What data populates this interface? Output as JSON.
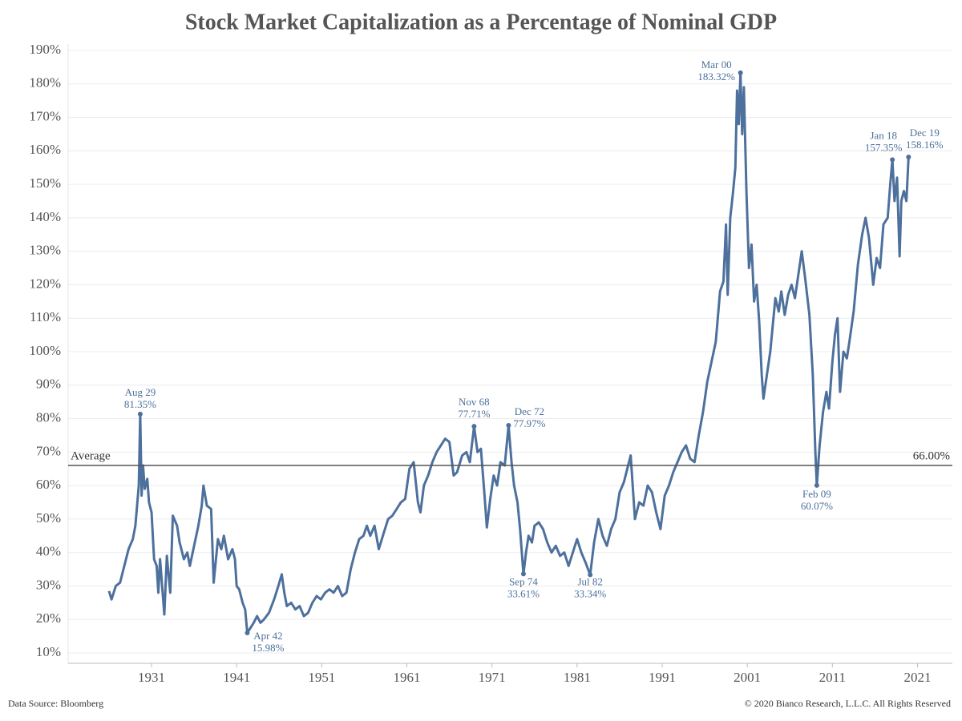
{
  "chart_data": {
    "type": "line",
    "title": "Stock Market Capitalization as a Percentage of Nominal GDP",
    "color": "#4d709c",
    "x": [
      1926.0,
      1926.3,
      1926.8,
      1927.3,
      1927.8,
      1928.3,
      1928.8,
      1929.1,
      1929.5,
      1929.67,
      1929.83,
      1930.0,
      1930.2,
      1930.5,
      1930.7,
      1931.0,
      1931.3,
      1931.6,
      1931.8,
      1932.0,
      1932.5,
      1932.8,
      1933.2,
      1933.5,
      1934.0,
      1934.3,
      1934.8,
      1935.2,
      1935.5,
      1936.0,
      1936.5,
      1936.9,
      1937.1,
      1937.5,
      1938.0,
      1938.3,
      1938.8,
      1939.2,
      1939.5,
      1940.0,
      1940.5,
      1940.8,
      1941.0,
      1941.3,
      1941.7,
      1942.0,
      1942.25,
      1942.5,
      1943.0,
      1943.4,
      1943.8,
      1944.2,
      1944.8,
      1945.4,
      1945.9,
      1946.3,
      1946.6,
      1946.9,
      1947.4,
      1947.9,
      1948.4,
      1948.9,
      1949.4,
      1949.9,
      1950.4,
      1950.9,
      1951.4,
      1951.9,
      1952.4,
      1952.9,
      1953.4,
      1953.9,
      1954.4,
      1954.9,
      1955.4,
      1955.9,
      1956.3,
      1956.7,
      1957.2,
      1957.7,
      1958.3,
      1958.8,
      1959.3,
      1959.8,
      1960.3,
      1960.8,
      1961.3,
      1961.8,
      1962.3,
      1962.6,
      1963.0,
      1963.5,
      1964.0,
      1964.5,
      1965.0,
      1965.5,
      1966.0,
      1966.5,
      1966.9,
      1967.5,
      1968.0,
      1968.4,
      1968.9,
      1969.3,
      1969.7,
      1970.1,
      1970.4,
      1970.8,
      1971.2,
      1971.6,
      1972.0,
      1972.5,
      1972.95,
      1973.3,
      1973.6,
      1974.0,
      1974.3,
      1974.7,
      1975.0,
      1975.3,
      1975.7,
      1976.0,
      1976.5,
      1977.0,
      1977.5,
      1978.0,
      1978.5,
      1979.0,
      1979.5,
      1980.0,
      1980.5,
      1981.0,
      1981.5,
      1982.0,
      1982.54,
      1983.0,
      1983.5,
      1984.0,
      1984.5,
      1985.0,
      1985.5,
      1986.0,
      1986.5,
      1987.3,
      1987.8,
      1988.3,
      1988.8,
      1989.3,
      1989.8,
      1990.3,
      1990.8,
      1991.3,
      1991.8,
      1992.3,
      1992.8,
      1993.3,
      1993.8,
      1994.3,
      1994.8,
      1995.3,
      1995.8,
      1996.3,
      1996.8,
      1997.3,
      1997.8,
      1998.2,
      1998.5,
      1998.7,
      1999.0,
      1999.3,
      1999.6,
      1999.8,
      2000.0,
      2000.2,
      2000.4,
      2000.6,
      2000.9,
      2001.2,
      2001.5,
      2001.8,
      2002.1,
      2002.4,
      2002.7,
      2002.9,
      2003.3,
      2003.7,
      2004.0,
      2004.3,
      2004.7,
      2005.0,
      2005.4,
      2005.8,
      2006.2,
      2006.6,
      2007.0,
      2007.4,
      2007.8,
      2008.3,
      2008.7,
      2009.0,
      2009.17,
      2009.5,
      2009.9,
      2010.3,
      2010.6,
      2011.0,
      2011.3,
      2011.6,
      2011.9,
      2012.3,
      2012.7,
      2013.0,
      2013.5,
      2014.0,
      2014.5,
      2014.9,
      2015.3,
      2015.8,
      2016.2,
      2016.6,
      2017.0,
      2017.5,
      2017.8,
      2018.05,
      2018.3,
      2018.6,
      2018.9,
      2019.1,
      2019.4,
      2019.7,
      2019.95
    ],
    "values": [
      28.5,
      26,
      30,
      31,
      36,
      41,
      44,
      48,
      60,
      81.35,
      57,
      66,
      59,
      62,
      55,
      52,
      38,
      36,
      28,
      38,
      21.5,
      39,
      28,
      51,
      48,
      43,
      38,
      40,
      36,
      42,
      48,
      54,
      60,
      54,
      53,
      31,
      44,
      41,
      45,
      38,
      41,
      38,
      30,
      29,
      25,
      23,
      15.98,
      17,
      19,
      21,
      19,
      20,
      22,
      26,
      30,
      33.5,
      28,
      24,
      25,
      23,
      24,
      21,
      22,
      25,
      27,
      26,
      28,
      29,
      28,
      30,
      27,
      28,
      35,
      40,
      44,
      45,
      48,
      45,
      48,
      41,
      46,
      50,
      51,
      53,
      55,
      56,
      65,
      67,
      55,
      52,
      60,
      63,
      67,
      70,
      72,
      74,
      73,
      63,
      64,
      69,
      70,
      67,
      77.71,
      70,
      71,
      58,
      47.5,
      56,
      63,
      60,
      67,
      66,
      77.97,
      67,
      60,
      55,
      47,
      33.61,
      40,
      45,
      43,
      48,
      49,
      47,
      43,
      40,
      42,
      39,
      40,
      36,
      40,
      44,
      40,
      37,
      33.34,
      43,
      50,
      45,
      42,
      47,
      50,
      58,
      61,
      69,
      50,
      55,
      54,
      60,
      58,
      52,
      47,
      57,
      60,
      64,
      67,
      70,
      72,
      68,
      67,
      75,
      82,
      91,
      97,
      103,
      118,
      121,
      138,
      117,
      140,
      147,
      155,
      178,
      168,
      183.32,
      165,
      179,
      148,
      125,
      132,
      115,
      120,
      109,
      93,
      86,
      93,
      100,
      108,
      116,
      112,
      118,
      111,
      117,
      120,
      116,
      123,
      130,
      122,
      111,
      93,
      70,
      60.07,
      72,
      82,
      88,
      83,
      97,
      105,
      110,
      88,
      100,
      98,
      103,
      112,
      126,
      135,
      140,
      134,
      120,
      128,
      125,
      138,
      140,
      150,
      157.35,
      145,
      152,
      128.5,
      145,
      148,
      145,
      158.16
    ],
    "xlim": [
      1921.2,
      2025.1
    ],
    "xticks": [
      1931,
      1941,
      1951,
      1961,
      1971,
      1981,
      1991,
      2001,
      2011,
      2021
    ],
    "ylim": [
      6.9,
      191.9
    ],
    "yticks": [
      {
        "value": 10,
        "label": "10%"
      },
      {
        "value": 20,
        "label": "20%"
      },
      {
        "value": 30,
        "label": "30%"
      },
      {
        "value": 40,
        "label": "40%"
      },
      {
        "value": 50,
        "label": "50%"
      },
      {
        "value": 60,
        "label": "60%"
      },
      {
        "value": 70,
        "label": "70%"
      },
      {
        "value": 80,
        "label": "80%"
      },
      {
        "value": 90,
        "label": "90%"
      },
      {
        "value": 100,
        "label": "100%"
      },
      {
        "value": 110,
        "label": "110%"
      },
      {
        "value": 120,
        "label": "120%"
      },
      {
        "value": 130,
        "label": "130%"
      },
      {
        "value": 140,
        "label": "140%"
      },
      {
        "value": 150,
        "label": "150%"
      },
      {
        "value": 160,
        "label": "160%"
      },
      {
        "value": 170,
        "label": "170%"
      },
      {
        "value": 180,
        "label": "180%"
      },
      {
        "value": 190,
        "label": "190%"
      }
    ],
    "grid": true,
    "average": {
      "label": "Average",
      "value": 66.0,
      "value_label": "66.00%"
    },
    "annotations": [
      {
        "date": "Aug 29",
        "x": 1929.67,
        "value": 81.35,
        "value_label": "81.35%"
      },
      {
        "date": "Apr 42",
        "x": 1942.25,
        "value": 15.98,
        "value_label": "15.98%"
      },
      {
        "date": "Nov 68",
        "x": 1968.9,
        "value": 77.71,
        "value_label": "77.71%"
      },
      {
        "date": "Dec 72",
        "x": 1972.95,
        "value": 77.97,
        "value_label": "77.97%"
      },
      {
        "date": "Sep 74",
        "x": 1974.7,
        "value": 33.61,
        "value_label": "33.61%"
      },
      {
        "date": "Jul 82",
        "x": 1982.54,
        "value": 33.34,
        "value_label": "33.34%"
      },
      {
        "date": "Mar 00",
        "x": 2000.2,
        "value": 183.32,
        "value_label": "183.32%"
      },
      {
        "date": "Feb 09",
        "x": 2009.17,
        "value": 60.07,
        "value_label": "60.07%"
      },
      {
        "date": "Jan 18",
        "x": 2018.05,
        "value": 157.35,
        "value_label": "157.35%"
      },
      {
        "date": "Dec 19",
        "x": 2019.95,
        "value": 158.16,
        "value_label": "158.16%"
      }
    ],
    "source": "Data Source: Bloomberg",
    "copyright": "© 2020 Bianco Research, L.L.C. All Rights Reserved"
  }
}
